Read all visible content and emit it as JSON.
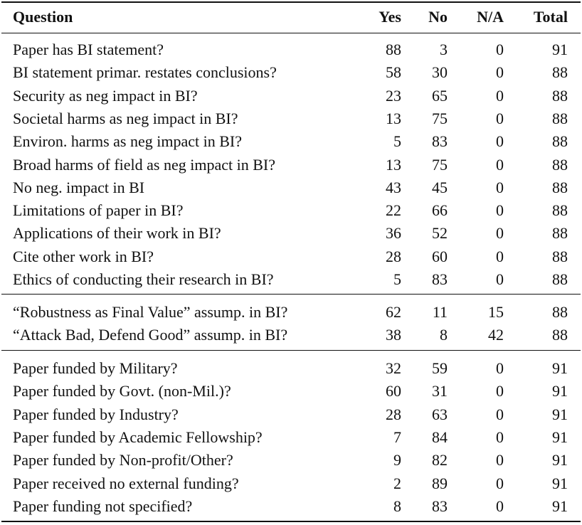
{
  "table": {
    "header": [
      "Question",
      "Yes",
      "No",
      "N/A",
      "Total"
    ],
    "groups": [
      {
        "rows": [
          [
            "Paper has BI statement?",
            88,
            3,
            0,
            91
          ],
          [
            "BI statement primar. restates conclusions?",
            58,
            30,
            0,
            88
          ],
          [
            "Security as neg impact in BI?",
            23,
            65,
            0,
            88
          ],
          [
            "Societal harms as neg impact in BI?",
            13,
            75,
            0,
            88
          ],
          [
            "Environ. harms as neg impact in BI?",
            5,
            83,
            0,
            88
          ],
          [
            "Broad harms of field as neg impact in BI?",
            13,
            75,
            0,
            88
          ],
          [
            "No neg. impact in BI",
            43,
            45,
            0,
            88
          ],
          [
            "Limitations of paper in BI?",
            22,
            66,
            0,
            88
          ],
          [
            "Applications of their work in BI?",
            36,
            52,
            0,
            88
          ],
          [
            "Cite other work in BI?",
            28,
            60,
            0,
            88
          ],
          [
            "Ethics of conducting their research in BI?",
            5,
            83,
            0,
            88
          ]
        ]
      },
      {
        "rows": [
          [
            "“Robustness as Final Value” assump. in BI?",
            62,
            11,
            15,
            88
          ],
          [
            "“Attack Bad, Defend Good” assump. in BI?",
            38,
            8,
            42,
            88
          ]
        ]
      },
      {
        "rows": [
          [
            "Paper funded by Military?",
            32,
            59,
            0,
            91
          ],
          [
            "Paper funded by Govt. (non-Mil.)?",
            60,
            31,
            0,
            91
          ],
          [
            "Paper funded by Industry?",
            28,
            63,
            0,
            91
          ],
          [
            "Paper funded by Academic Fellowship?",
            7,
            84,
            0,
            91
          ],
          [
            "Paper funded by Non-profit/Other?",
            9,
            82,
            0,
            91
          ],
          [
            "Paper received no external funding?",
            2,
            89,
            0,
            91
          ],
          [
            "Paper funding not specified?",
            8,
            83,
            0,
            91
          ]
        ]
      }
    ]
  }
}
